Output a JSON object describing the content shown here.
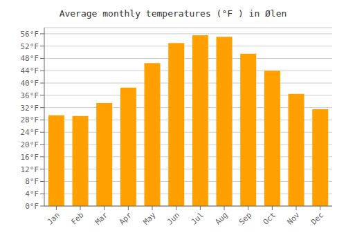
{
  "chart_data": {
    "type": "bar",
    "title": "Average monthly temperatures (°F ) in Ølen",
    "categories": [
      "Jan",
      "Feb",
      "Mar",
      "Apr",
      "May",
      "Jun",
      "Jul",
      "Aug",
      "Sep",
      "Oct",
      "Nov",
      "Dec"
    ],
    "values": [
      29.5,
      29.3,
      33.5,
      38.5,
      46.5,
      53.0,
      55.5,
      55.0,
      49.5,
      44.0,
      36.5,
      31.5
    ],
    "color": "#FFA000",
    "ylim": [
      0,
      58
    ],
    "yticks": [
      {
        "value": 0,
        "label": "0°F"
      },
      {
        "value": 4,
        "label": "4°F"
      },
      {
        "value": 8,
        "label": "8°F"
      },
      {
        "value": 12,
        "label": "12°F"
      },
      {
        "value": 16,
        "label": "16°F"
      },
      {
        "value": 20,
        "label": "20°F"
      },
      {
        "value": 24,
        "label": "24°F"
      },
      {
        "value": 28,
        "label": "28°F"
      },
      {
        "value": 32,
        "label": "32°F"
      },
      {
        "value": 36,
        "label": "36°F"
      },
      {
        "value": 40,
        "label": "40°F"
      },
      {
        "value": 44,
        "label": "44°F"
      },
      {
        "value": 48,
        "label": "48°F"
      },
      {
        "value": 52,
        "label": "52°F"
      },
      {
        "value": 56,
        "label": "56°F"
      }
    ],
    "grid": true
  }
}
